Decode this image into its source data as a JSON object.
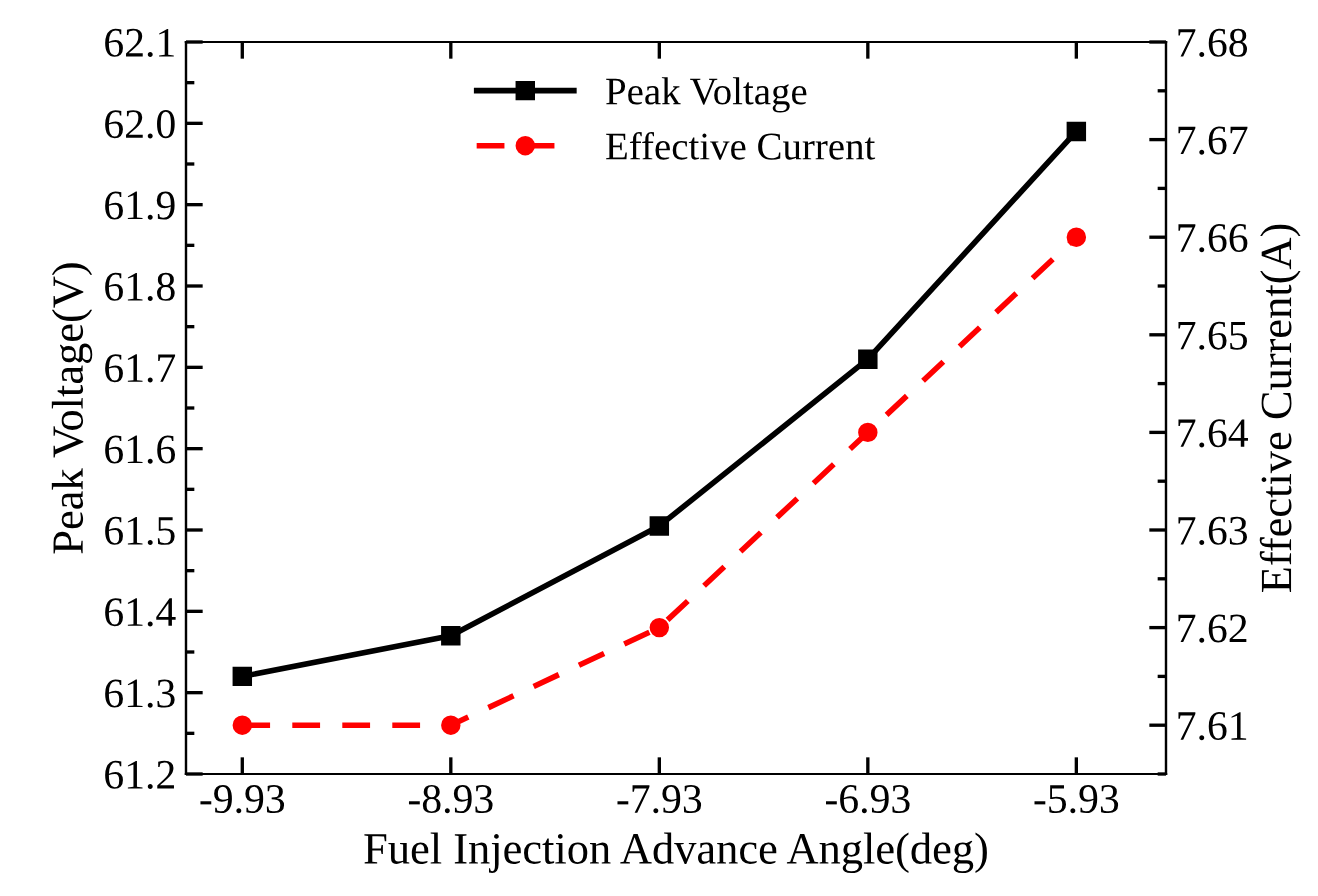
{
  "chart_data": {
    "type": "line",
    "xlabel": "Fuel Injection Advance Angle(deg)",
    "ylabel": "Peak Voltage(V)",
    "y2label": "Effective Current(A)",
    "x": [
      -9.93,
      -8.93,
      -7.93,
      -6.93,
      -5.93
    ],
    "series": [
      {
        "name": "Peak Voltage",
        "color": "#000000",
        "marker": "square",
        "line_style": "solid",
        "values": [
          61.32,
          61.37,
          61.505,
          61.71,
          61.99
        ]
      },
      {
        "name": "Effective Current",
        "color": "#ff0000",
        "marker": "circle",
        "line_style": "dashed",
        "axis": "y2",
        "values": [
          7.61,
          7.61,
          7.62,
          7.64,
          7.66
        ]
      }
    ],
    "xlim": [
      -10.2,
      -5.5
    ],
    "xticks": [
      -9.93,
      -8.93,
      -7.93,
      -6.93,
      -5.93
    ],
    "ylim": [
      61.2,
      62.1
    ],
    "yticks": [
      61.2,
      61.3,
      61.4,
      61.5,
      61.6,
      61.7,
      61.8,
      61.9,
      {
        "value": 62.0,
        "label": "62.0"
      },
      62.1
    ],
    "y2lim": [
      7.605,
      7.68
    ],
    "y2ticks": [
      7.61,
      7.62,
      7.63,
      7.64,
      7.65,
      7.66,
      7.67,
      7.68
    ],
    "legend": "top",
    "grid": false
  }
}
